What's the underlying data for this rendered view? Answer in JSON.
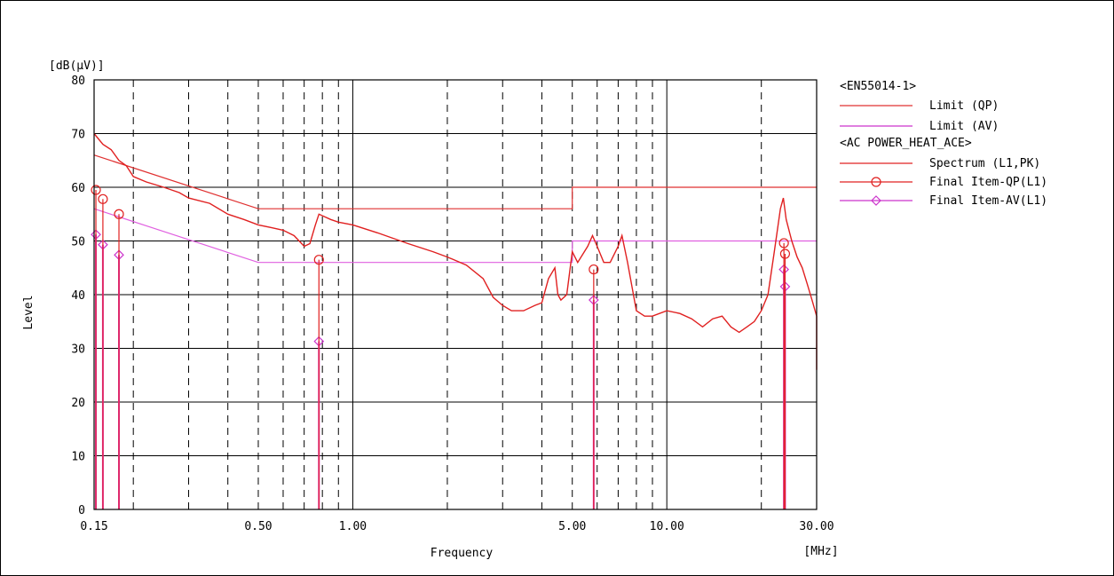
{
  "chart_data": {
    "type": "line",
    "ylabel_unit": "[dB(µV)]",
    "ylabel": "Level",
    "xlabel": "Frequency",
    "xlabel_unit": "[MHz]",
    "x_scale": "log",
    "xlim": [
      0.15,
      30
    ],
    "ylim": [
      0,
      80
    ],
    "x_tick_labels": [
      {
        "value": 0.15,
        "label": "0.15"
      },
      {
        "value": 0.5,
        "label": "0.50"
      },
      {
        "value": 1,
        "label": "1.00"
      },
      {
        "value": 5,
        "label": "5.00"
      },
      {
        "value": 10,
        "label": "10.00"
      },
      {
        "value": 30,
        "label": "30.00"
      }
    ],
    "y_ticks": [
      0,
      10,
      20,
      30,
      40,
      50,
      60,
      70,
      80
    ],
    "y_tick_labels": [
      "0",
      "10",
      "20",
      "30",
      "40",
      "50",
      "60",
      "70",
      "80"
    ],
    "x_grid_major": [
      1,
      10
    ],
    "x_grid_minor": [
      0.2,
      0.3,
      0.4,
      0.5,
      0.6,
      0.7,
      0.8,
      0.9,
      2,
      3,
      4,
      5,
      6,
      7,
      8,
      9,
      20
    ],
    "grid": true,
    "legend_position": "right",
    "legend": {
      "group1_title": "<EN55014-1>",
      "group2_title": "<AC POWER_HEAT_ACE>",
      "entries": [
        {
          "key": "limit_qp",
          "label": "Limit (QP)",
          "color": "#e03030",
          "marker": "none"
        },
        {
          "key": "limit_av",
          "label": "Limit (AV)",
          "color": "#cc33cc",
          "marker": "none"
        },
        {
          "key": "spectrum",
          "label": "Spectrum (L1,PK)",
          "color": "#e02020",
          "marker": "none"
        },
        {
          "key": "final_qp",
          "label": "Final Item-QP(L1)",
          "color": "#e02020",
          "marker": "circle"
        },
        {
          "key": "final_av",
          "label": "Final Item-AV(L1)",
          "color": "#cc33cc",
          "marker": "diamond"
        }
      ]
    },
    "series": [
      {
        "name": "Limit (QP)",
        "color": "#e03030",
        "points": [
          [
            0.15,
            66
          ],
          [
            0.5,
            56
          ],
          [
            5,
            56
          ],
          [
            5,
            60
          ],
          [
            30,
            60
          ]
        ]
      },
      {
        "name": "Limit (AV)",
        "color": "#e060e0",
        "points": [
          [
            0.15,
            56
          ],
          [
            0.5,
            46
          ],
          [
            5,
            46
          ],
          [
            5,
            50
          ],
          [
            30,
            50
          ]
        ]
      },
      {
        "name": "Spectrum (L1,PK)",
        "color": "#e02020",
        "points": [
          [
            0.15,
            70
          ],
          [
            0.16,
            68
          ],
          [
            0.17,
            67
          ],
          [
            0.18,
            65
          ],
          [
            0.19,
            64
          ],
          [
            0.2,
            62
          ],
          [
            0.22,
            61
          ],
          [
            0.25,
            60
          ],
          [
            0.28,
            59
          ],
          [
            0.3,
            58
          ],
          [
            0.35,
            57
          ],
          [
            0.4,
            55
          ],
          [
            0.45,
            54
          ],
          [
            0.5,
            53
          ],
          [
            0.55,
            52.5
          ],
          [
            0.6,
            52
          ],
          [
            0.65,
            51
          ],
          [
            0.7,
            49
          ],
          [
            0.73,
            49.5
          ],
          [
            0.76,
            53
          ],
          [
            0.78,
            55
          ],
          [
            0.85,
            54
          ],
          [
            0.9,
            53.5
          ],
          [
            1,
            53
          ],
          [
            1.2,
            51.5
          ],
          [
            1.5,
            49.5
          ],
          [
            1.8,
            48
          ],
          [
            2,
            47
          ],
          [
            2.3,
            45.5
          ],
          [
            2.6,
            43
          ],
          [
            2.8,
            39.5
          ],
          [
            3,
            38
          ],
          [
            3.2,
            37
          ],
          [
            3.5,
            37
          ],
          [
            3.8,
            38
          ],
          [
            4,
            38.5
          ],
          [
            4.2,
            43
          ],
          [
            4.4,
            45
          ],
          [
            4.5,
            40
          ],
          [
            4.6,
            39
          ],
          [
            4.8,
            40
          ],
          [
            5,
            48
          ],
          [
            5.2,
            46
          ],
          [
            5.6,
            49
          ],
          [
            5.8,
            51
          ],
          [
            6,
            49
          ],
          [
            6.3,
            46
          ],
          [
            6.6,
            46
          ],
          [
            7,
            49
          ],
          [
            7.2,
            51
          ],
          [
            7.5,
            46
          ],
          [
            8,
            37
          ],
          [
            8.5,
            36
          ],
          [
            9,
            36
          ],
          [
            10,
            37
          ],
          [
            11,
            36.5
          ],
          [
            12,
            35.5
          ],
          [
            13,
            34
          ],
          [
            14,
            35.5
          ],
          [
            15,
            36
          ],
          [
            16,
            34
          ],
          [
            17,
            33
          ],
          [
            18,
            34
          ],
          [
            19,
            35
          ],
          [
            20,
            37
          ],
          [
            21,
            40
          ],
          [
            22,
            48
          ],
          [
            23,
            56
          ],
          [
            23.5,
            58
          ],
          [
            24,
            54
          ],
          [
            25,
            50
          ],
          [
            26,
            47
          ],
          [
            27,
            45
          ],
          [
            28,
            42
          ],
          [
            29,
            39
          ],
          [
            30,
            36
          ],
          [
            30,
            26
          ]
        ]
      }
    ],
    "final_qp_points": [
      [
        0.152,
        59.5
      ],
      [
        0.16,
        57.8
      ],
      [
        0.18,
        55
      ],
      [
        0.78,
        46.5
      ],
      [
        5.85,
        44.7
      ],
      [
        23.6,
        49.6
      ],
      [
        23.8,
        47.6
      ]
    ],
    "final_av_points": [
      [
        0.152,
        51.2
      ],
      [
        0.16,
        49.3
      ],
      [
        0.18,
        47.4
      ],
      [
        0.78,
        31.3
      ],
      [
        5.85,
        39
      ],
      [
        23.6,
        44.7
      ],
      [
        23.8,
        41.5
      ]
    ]
  }
}
